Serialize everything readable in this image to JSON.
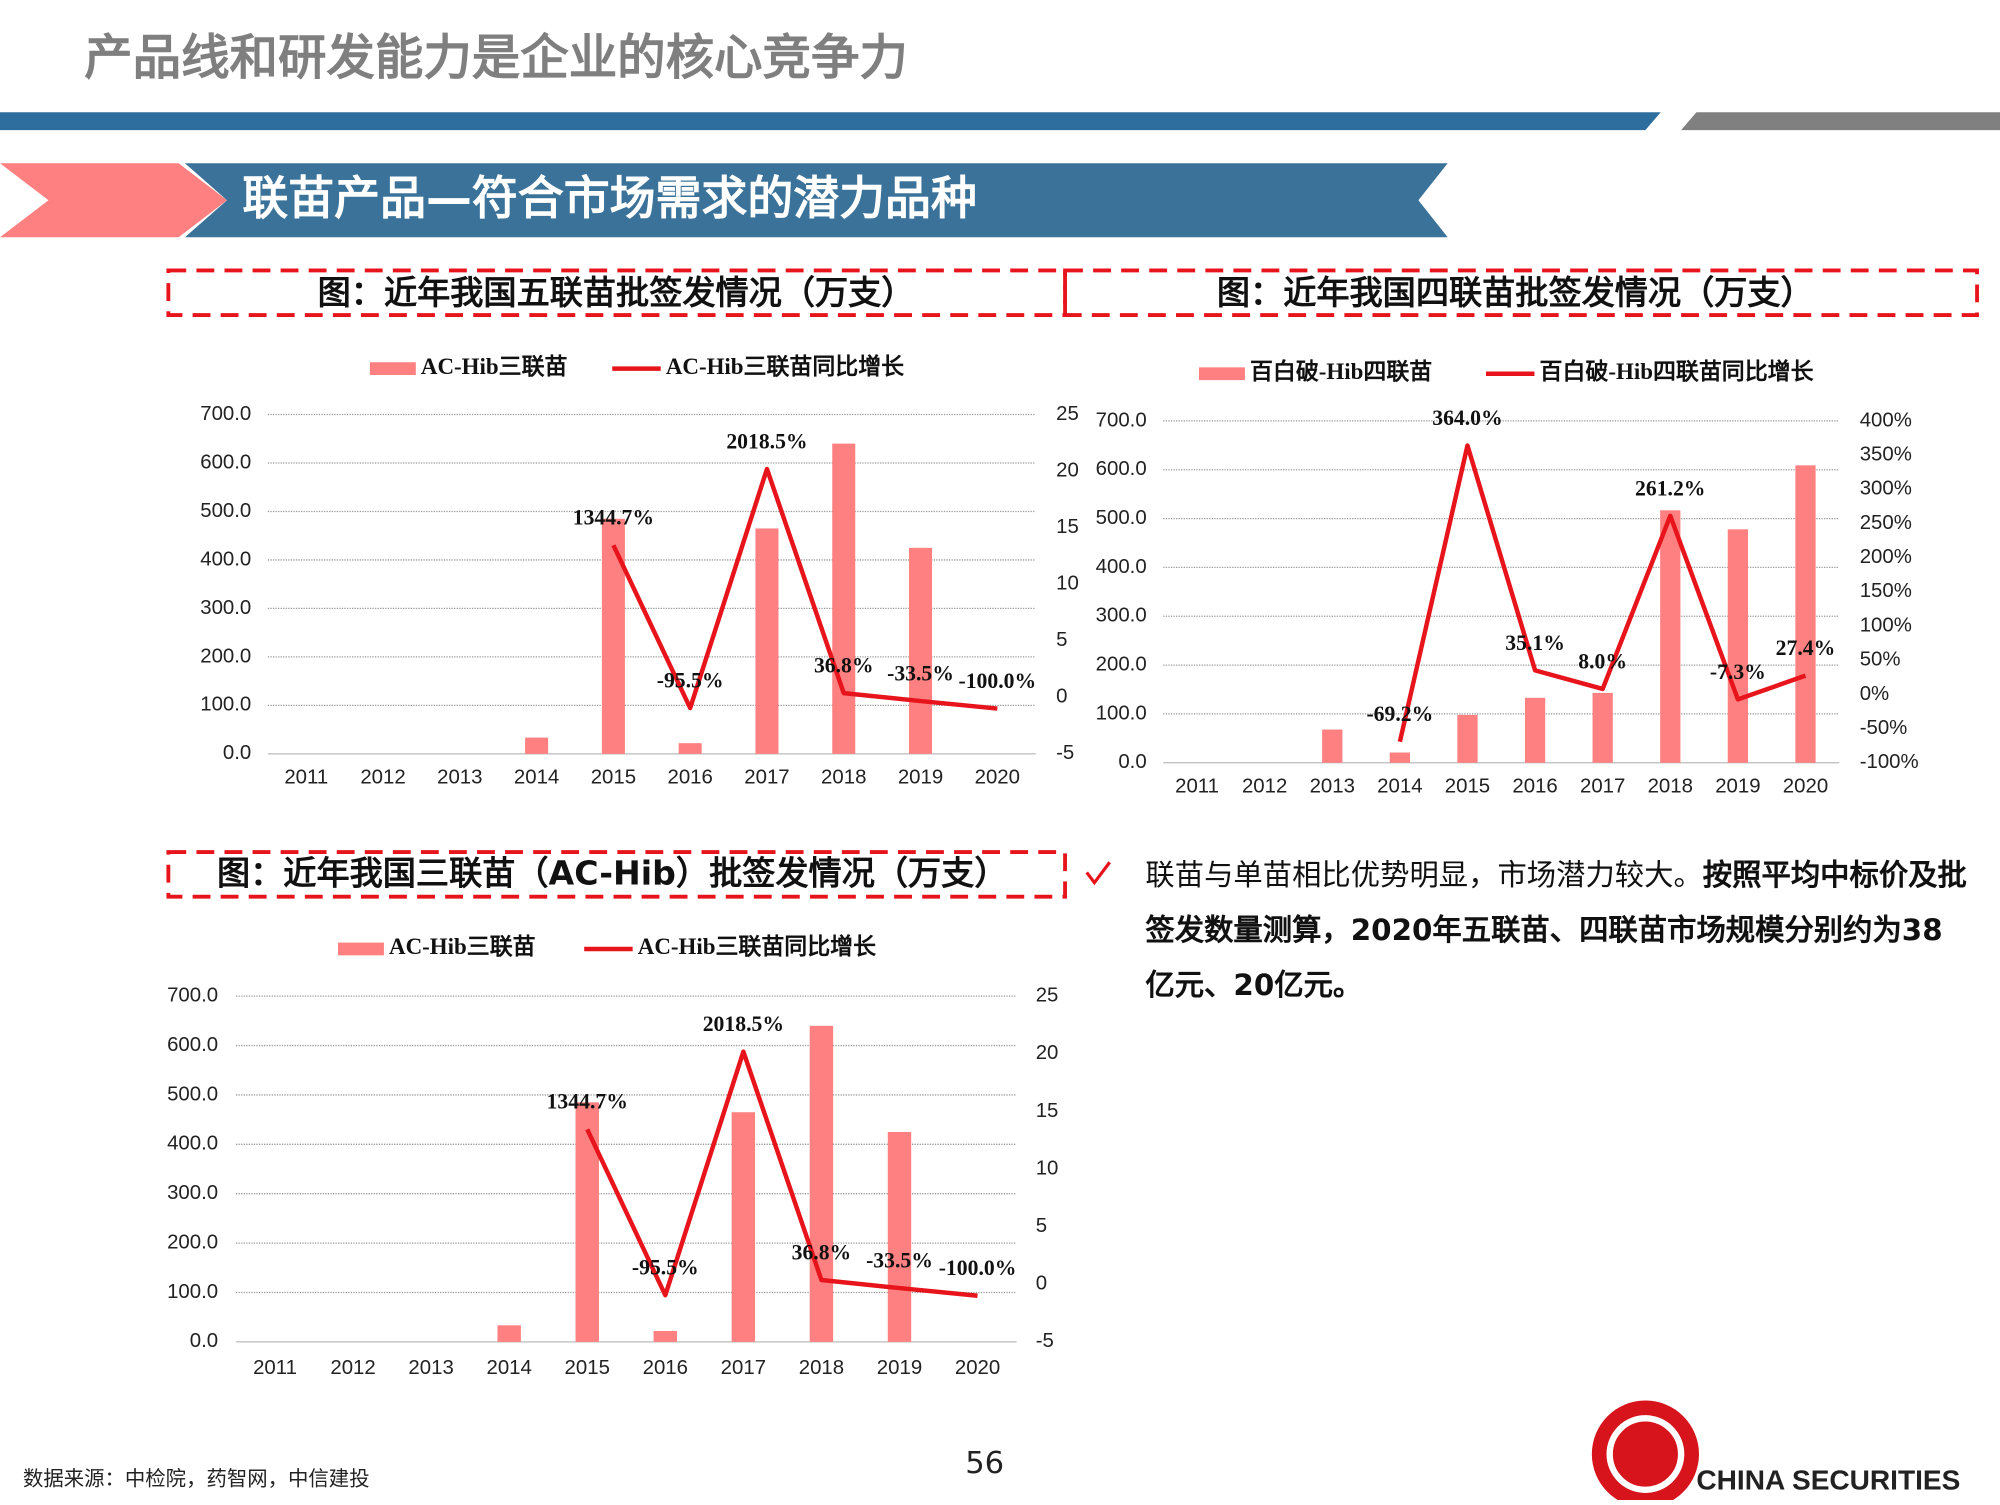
{
  "header": {
    "title": "产品线和研发能力是企业的核心竞争力"
  },
  "section": {
    "title": "联苗产品—符合市场需求的潜力品种"
  },
  "chart_data": [
    {
      "type": "combo",
      "title": "图：近年我国五联苗批签发情况（万支）",
      "categories": [
        "2011",
        "2012",
        "2013",
        "2014",
        "2015",
        "2016",
        "2017",
        "2018",
        "2019",
        "2020"
      ],
      "series": [
        {
          "name": "AC-Hib三联苗",
          "kind": "bar",
          "color": "#ff8080",
          "values": [
            null,
            null,
            null,
            33.5,
            485,
            22,
            465,
            640,
            425,
            0
          ]
        },
        {
          "name": "AC-Hib三联苗同比增长",
          "kind": "line",
          "axis": "y2",
          "color": "#e8141c",
          "values": [
            null,
            null,
            null,
            null,
            13.447,
            -0.955,
            20.185,
            0.368,
            -0.335,
            -1.0
          ],
          "value_labels": [
            null,
            null,
            null,
            null,
            "1344.7%",
            "-95.5%",
            "2018.5%",
            "36.8%",
            "-33.5%",
            "-100.0%"
          ]
        }
      ],
      "ylim": [
        0,
        700
      ],
      "yticks": [
        {
          "value": 0,
          "label": "0.0"
        },
        {
          "value": 100,
          "label": "100.0"
        },
        {
          "value": 200,
          "label": "200.0"
        },
        {
          "value": 300,
          "label": "300.0"
        },
        {
          "value": 400,
          "label": "400.0"
        },
        {
          "value": 500,
          "label": "500.0"
        },
        {
          "value": 600,
          "label": "600.0"
        },
        {
          "value": 700,
          "label": "700.0"
        }
      ],
      "y2lim": [
        -5,
        25
      ],
      "y2ticks": [
        -5,
        0,
        5,
        10,
        15,
        20,
        25
      ],
      "grid": true,
      "legend": "top"
    },
    {
      "type": "combo",
      "title": "图：近年我国四联苗批签发情况（万支）",
      "categories": [
        "2011",
        "2012",
        "2013",
        "2014",
        "2015",
        "2016",
        "2017",
        "2018",
        "2019",
        "2020"
      ],
      "series": [
        {
          "name": "百白破-Hib四联苗",
          "kind": "bar",
          "color": "#ff8080",
          "values": [
            null,
            null,
            68,
            21,
            98,
            133,
            143,
            517,
            478,
            609
          ]
        },
        {
          "name": "百白破-Hib四联苗同比增长",
          "kind": "line",
          "axis": "y2",
          "color": "#e8141c",
          "values": [
            null,
            null,
            null,
            -69.2,
            364.0,
            35.1,
            8.0,
            261.2,
            -7.3,
            27.4
          ],
          "value_labels": [
            null,
            null,
            null,
            "-69.2%",
            "364.0%",
            "35.1%",
            "8.0%",
            "261.2%",
            "-7.3%",
            "27.4%"
          ]
        }
      ],
      "ylim": [
        0,
        700
      ],
      "yticks": [
        {
          "value": 0,
          "label": "0.0"
        },
        {
          "value": 100,
          "label": "100.0"
        },
        {
          "value": 200,
          "label": "200.0"
        },
        {
          "value": 300,
          "label": "300.0"
        },
        {
          "value": 400,
          "label": "400.0"
        },
        {
          "value": 500,
          "label": "500.0"
        },
        {
          "value": 600,
          "label": "600.0"
        },
        {
          "value": 700,
          "label": "700.0"
        }
      ],
      "y2lim": [
        -100,
        400
      ],
      "y2ticks": [
        {
          "value": -100,
          "label": "-100%"
        },
        {
          "value": -50,
          "label": "-50%"
        },
        {
          "value": 0,
          "label": "0%"
        },
        {
          "value": 50,
          "label": "50%"
        },
        {
          "value": 100,
          "label": "100%"
        },
        {
          "value": 150,
          "label": "150%"
        },
        {
          "value": 200,
          "label": "200%"
        },
        {
          "value": 250,
          "label": "250%"
        },
        {
          "value": 300,
          "label": "300%"
        },
        {
          "value": 350,
          "label": "350%"
        },
        {
          "value": 400,
          "label": "400%"
        }
      ],
      "grid": true,
      "legend": "top"
    },
    {
      "type": "combo",
      "title": "图：近年我国三联苗（AC-Hib）批签发情况（万支）",
      "categories": [
        "2011",
        "2012",
        "2013",
        "2014",
        "2015",
        "2016",
        "2017",
        "2018",
        "2019",
        "2020"
      ],
      "series": [
        {
          "name": "AC-Hib三联苗",
          "kind": "bar",
          "color": "#ff8080",
          "values": [
            null,
            null,
            null,
            33.5,
            485,
            22,
            465,
            640,
            425,
            0
          ]
        },
        {
          "name": "AC-Hib三联苗同比增长",
          "kind": "line",
          "axis": "y2",
          "color": "#e8141c",
          "values": [
            null,
            null,
            null,
            null,
            13.447,
            -0.955,
            20.185,
            0.368,
            -0.335,
            -1.0
          ],
          "value_labels": [
            null,
            null,
            null,
            null,
            "1344.7%",
            "-95.5%",
            "2018.5%",
            "36.8%",
            "-33.5%",
            "-100.0%"
          ]
        }
      ],
      "ylim": [
        0,
        700
      ],
      "yticks": [
        {
          "value": 0,
          "label": "0.0"
        },
        {
          "value": 100,
          "label": "100.0"
        },
        {
          "value": 200,
          "label": "200.0"
        },
        {
          "value": 300,
          "label": "300.0"
        },
        {
          "value": 400,
          "label": "400.0"
        },
        {
          "value": 500,
          "label": "500.0"
        },
        {
          "value": 600,
          "label": "600.0"
        },
        {
          "value": 700,
          "label": "700.0"
        }
      ],
      "y2lim": [
        -5,
        25
      ],
      "y2ticks": [
        -5,
        0,
        5,
        10,
        15,
        20,
        25
      ],
      "grid": true,
      "legend": "top"
    }
  ],
  "bullet": [
    {
      "text": "联苗与单苗相比优势明显，市场潜力较大。",
      "bold": false
    },
    {
      "text": "按照平均中标价及批签发数量测算，2020年五联苗、四联苗市场规模分别约为38亿元、20亿元。",
      "bold": true
    }
  ],
  "source": "数据来源：中检院，药智网，中信建投",
  "page_number": "56",
  "logo": "CHINA SECURITIES"
}
